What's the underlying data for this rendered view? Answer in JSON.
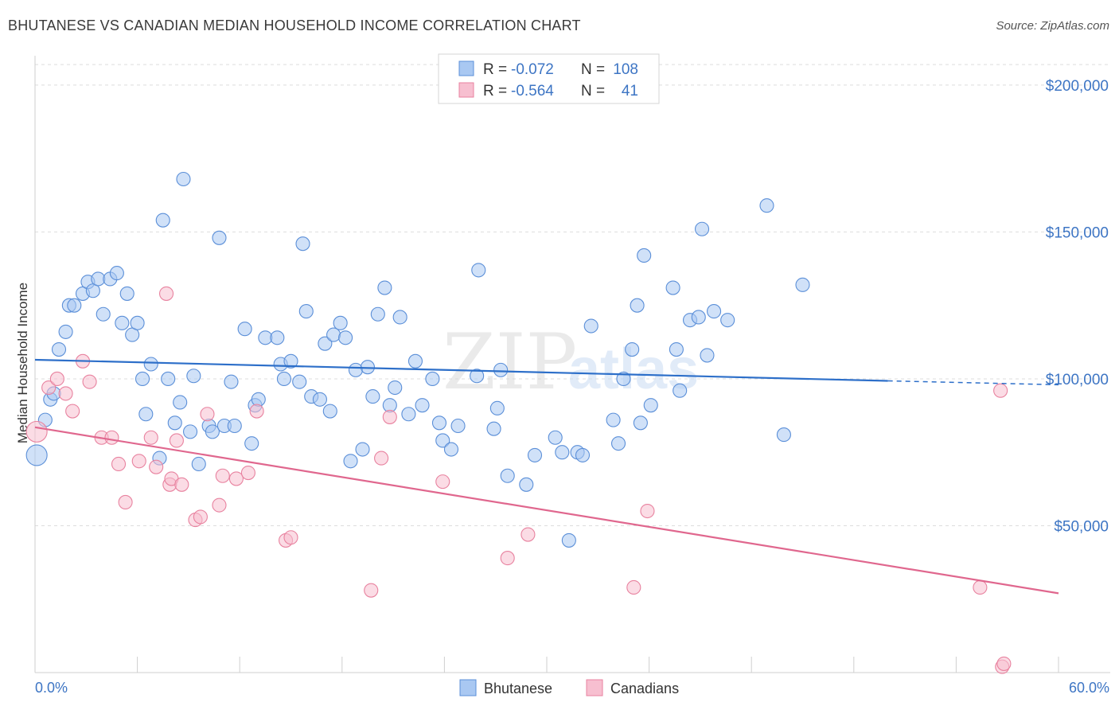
{
  "chart_data": {
    "type": "scatter",
    "title": "BHUTANESE VS CANADIAN MEDIAN HOUSEHOLD INCOME CORRELATION CHART",
    "source": "Source: ZipAtlas.com",
    "watermark": {
      "main": "ZIP",
      "sub": "atlas"
    },
    "ylabel": "Median Household Income",
    "xlim": [
      0,
      60
    ],
    "ylim": [
      0,
      210000
    ],
    "x_tick_labels": {
      "left": "0.0%",
      "right": "60.0%"
    },
    "y_ticks": [
      {
        "value": 50000,
        "label": "$50,000"
      },
      {
        "value": 100000,
        "label": "$100,000"
      },
      {
        "value": 150000,
        "label": "$150,000"
      },
      {
        "value": 200000,
        "label": "$200,000"
      }
    ],
    "legend": {
      "rows": [
        {
          "r_label": "R = ",
          "r_value": "-0.072",
          "n_label": "N = ",
          "n_value": "108"
        },
        {
          "r_label": "R = ",
          "r_value": "-0.564",
          "n_label": "N = ",
          "n_value": "41"
        }
      ],
      "bottom": [
        "Bhutanese",
        "Canadians"
      ]
    },
    "colors": {
      "bhutanese_fill": "#a9c8f2",
      "bhutanese_stroke": "#5b8fd8",
      "bhutanese_line": "#2d6fc9",
      "canadians_fill": "#f7bfd0",
      "canadians_stroke": "#e8829f",
      "canadians_line": "#e0678e",
      "axis_value": "#3d75c4",
      "grid": "#dddddd"
    },
    "series": [
      {
        "name": "Bhutanese",
        "trend": {
          "x0": 0,
          "y0": 106500,
          "x1": 50,
          "y1": 99300,
          "dash_to_x": 60,
          "dash_to_y": 98000
        },
        "points": [
          [
            0.1,
            74000
          ],
          [
            0.6,
            86000
          ],
          [
            0.9,
            93000
          ],
          [
            1.1,
            95000
          ],
          [
            1.4,
            110000
          ],
          [
            1.8,
            116000
          ],
          [
            2.0,
            125000
          ],
          [
            2.3,
            125000
          ],
          [
            2.8,
            129000
          ],
          [
            3.1,
            133000
          ],
          [
            3.4,
            130000
          ],
          [
            3.7,
            134000
          ],
          [
            4.0,
            122000
          ],
          [
            4.4,
            134000
          ],
          [
            4.8,
            136000
          ],
          [
            5.1,
            119000
          ],
          [
            5.4,
            129000
          ],
          [
            5.7,
            115000
          ],
          [
            6.0,
            119000
          ],
          [
            6.3,
            100000
          ],
          [
            6.5,
            88000
          ],
          [
            6.8,
            105000
          ],
          [
            7.3,
            73000
          ],
          [
            7.5,
            154000
          ],
          [
            7.8,
            100000
          ],
          [
            8.2,
            85000
          ],
          [
            8.5,
            92000
          ],
          [
            8.7,
            168000
          ],
          [
            9.1,
            82000
          ],
          [
            9.3,
            101000
          ],
          [
            9.6,
            71000
          ],
          [
            10.2,
            84000
          ],
          [
            10.4,
            82000
          ],
          [
            10.8,
            148000
          ],
          [
            11.1,
            84000
          ],
          [
            11.5,
            99000
          ],
          [
            11.7,
            84000
          ],
          [
            12.3,
            117000
          ],
          [
            12.7,
            78000
          ],
          [
            12.9,
            91000
          ],
          [
            13.1,
            93000
          ],
          [
            13.5,
            114000
          ],
          [
            14.2,
            114000
          ],
          [
            14.4,
            105000
          ],
          [
            14.6,
            100000
          ],
          [
            15.0,
            106000
          ],
          [
            15.5,
            99000
          ],
          [
            15.7,
            146000
          ],
          [
            15.9,
            123000
          ],
          [
            16.2,
            94000
          ],
          [
            16.7,
            93000
          ],
          [
            17.0,
            112000
          ],
          [
            17.3,
            89000
          ],
          [
            17.5,
            115000
          ],
          [
            17.9,
            119000
          ],
          [
            18.2,
            114000
          ],
          [
            18.5,
            72000
          ],
          [
            18.8,
            103000
          ],
          [
            19.2,
            76000
          ],
          [
            19.5,
            104000
          ],
          [
            19.8,
            94000
          ],
          [
            20.1,
            122000
          ],
          [
            20.5,
            131000
          ],
          [
            20.8,
            91000
          ],
          [
            21.1,
            97000
          ],
          [
            21.4,
            121000
          ],
          [
            21.9,
            88000
          ],
          [
            22.3,
            106000
          ],
          [
            22.7,
            91000
          ],
          [
            23.3,
            100000
          ],
          [
            23.7,
            85000
          ],
          [
            23.9,
            79000
          ],
          [
            24.4,
            76000
          ],
          [
            24.8,
            84000
          ],
          [
            25.9,
            101000
          ],
          [
            26.0,
            137000
          ],
          [
            26.9,
            83000
          ],
          [
            27.1,
            90000
          ],
          [
            27.3,
            103000
          ],
          [
            27.7,
            67000
          ],
          [
            28.8,
            64000
          ],
          [
            29.3,
            74000
          ],
          [
            30.5,
            80000
          ],
          [
            30.9,
            75000
          ],
          [
            31.3,
            45000
          ],
          [
            31.8,
            75000
          ],
          [
            32.1,
            74000
          ],
          [
            32.6,
            118000
          ],
          [
            33.9,
            86000
          ],
          [
            34.2,
            78000
          ],
          [
            34.5,
            100000
          ],
          [
            35.0,
            110000
          ],
          [
            35.3,
            125000
          ],
          [
            35.5,
            85000
          ],
          [
            35.7,
            142000
          ],
          [
            36.1,
            91000
          ],
          [
            37.4,
            131000
          ],
          [
            37.6,
            110000
          ],
          [
            37.8,
            96000
          ],
          [
            38.4,
            120000
          ],
          [
            38.9,
            121000
          ],
          [
            39.1,
            151000
          ],
          [
            39.4,
            108000
          ],
          [
            39.8,
            123000
          ],
          [
            40.6,
            120000
          ],
          [
            42.9,
            159000
          ],
          [
            43.9,
            81000
          ],
          [
            45.0,
            132000
          ]
        ]
      },
      {
        "name": "Canadians",
        "trend": {
          "x0": 0,
          "y0": 83500,
          "x1": 60,
          "y1": 27000
        },
        "points": [
          [
            0.1,
            82000
          ],
          [
            0.8,
            97000
          ],
          [
            1.3,
            100000
          ],
          [
            1.8,
            95000
          ],
          [
            2.2,
            89000
          ],
          [
            2.8,
            106000
          ],
          [
            3.2,
            99000
          ],
          [
            3.9,
            80000
          ],
          [
            4.5,
            80000
          ],
          [
            4.9,
            71000
          ],
          [
            5.3,
            58000
          ],
          [
            6.1,
            72000
          ],
          [
            6.8,
            80000
          ],
          [
            7.1,
            70000
          ],
          [
            7.7,
            129000
          ],
          [
            7.9,
            64000
          ],
          [
            8.0,
            66000
          ],
          [
            8.3,
            79000
          ],
          [
            8.6,
            64000
          ],
          [
            9.4,
            52000
          ],
          [
            9.7,
            53000
          ],
          [
            10.1,
            88000
          ],
          [
            10.8,
            57000
          ],
          [
            11.0,
            67000
          ],
          [
            11.8,
            66000
          ],
          [
            12.5,
            68000
          ],
          [
            13.0,
            89000
          ],
          [
            14.7,
            45000
          ],
          [
            15.0,
            46000
          ],
          [
            19.7,
            28000
          ],
          [
            20.3,
            73000
          ],
          [
            20.8,
            87000
          ],
          [
            23.9,
            65000
          ],
          [
            27.7,
            39000
          ],
          [
            28.9,
            47000
          ],
          [
            35.1,
            29000
          ],
          [
            35.9,
            55000
          ],
          [
            55.4,
            29000
          ],
          [
            56.6,
            96000
          ],
          [
            56.7,
            2000
          ],
          [
            56.8,
            3000
          ]
        ]
      }
    ]
  }
}
